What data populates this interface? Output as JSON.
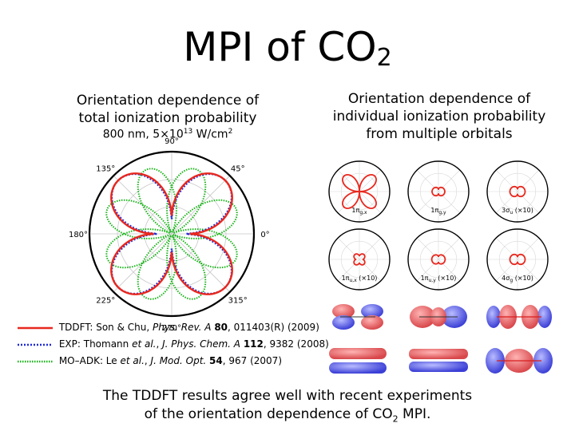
{
  "title": {
    "main": "MPI of CO",
    "sub": "2"
  },
  "left_heading": {
    "line1": "Orientation dependence of",
    "line2": "total ionization probability"
  },
  "condition": {
    "text1": "800 nm, 5×10",
    "exp": "13",
    "text2": " W/cm",
    "sq": "2"
  },
  "right_heading": {
    "line1": "Orientation dependence of",
    "line2": "individual ionization probability",
    "line3": "from multiple orbitals"
  },
  "chart_data": {
    "type": "polar",
    "angular_tick_labels": [
      "90°",
      "45°",
      "0°",
      "315°",
      "270°",
      "225°",
      "180°",
      "135°"
    ],
    "series": [
      {
        "color": "#e8281e"
      },
      {
        "color": "#1f2bd6"
      },
      {
        "color": "#18b418"
      }
    ]
  },
  "legend": [
    {
      "name": "TDDFT",
      "pre": ": Son & Chu, ",
      "journal": "Phys. Rev. A ",
      "vol": "80",
      "post": ", 011403(R) (2009)",
      "color": "#e8281e",
      "style": "solid"
    },
    {
      "name": "EXP",
      "pre": ": Thomann ",
      "etal": "et al.",
      "mid": ", ",
      "journal": "J. Phys. Chem. A ",
      "vol": "112",
      "post": ", 9382 (2008)",
      "color": "#1f2bd6",
      "style": "dotted"
    },
    {
      "name": "MO–ADK",
      "pre": ": Le ",
      "etal": "et al.",
      "mid": ", ",
      "journal": "J. Mod. Opt. ",
      "vol": "54",
      "post": ", 967 (2007)",
      "color": "#18b418",
      "style": "dotted"
    }
  ],
  "orbital_plots": [
    {
      "label": "1π",
      "label_sub": "g,x",
      "label_suffix": ""
    },
    {
      "label": "1π",
      "label_sub": "g,y",
      "label_suffix": ""
    },
    {
      "label": "3σ",
      "label_sub": "u",
      "label_suffix": " (×10)"
    },
    {
      "label": "1π",
      "label_sub": "u,x",
      "label_suffix": " (×10)"
    },
    {
      "label": "1π",
      "label_sub": "u,y",
      "label_suffix": " (×10)"
    },
    {
      "label": "4σ",
      "label_sub": "g",
      "label_suffix": " (×10)"
    }
  ],
  "conclusion": {
    "line1": "The TDDFT results agree well with recent experiments",
    "line2_pre": "of the orientation dependence of CO",
    "line2_sub": "2",
    "line2_post": " MPI."
  }
}
